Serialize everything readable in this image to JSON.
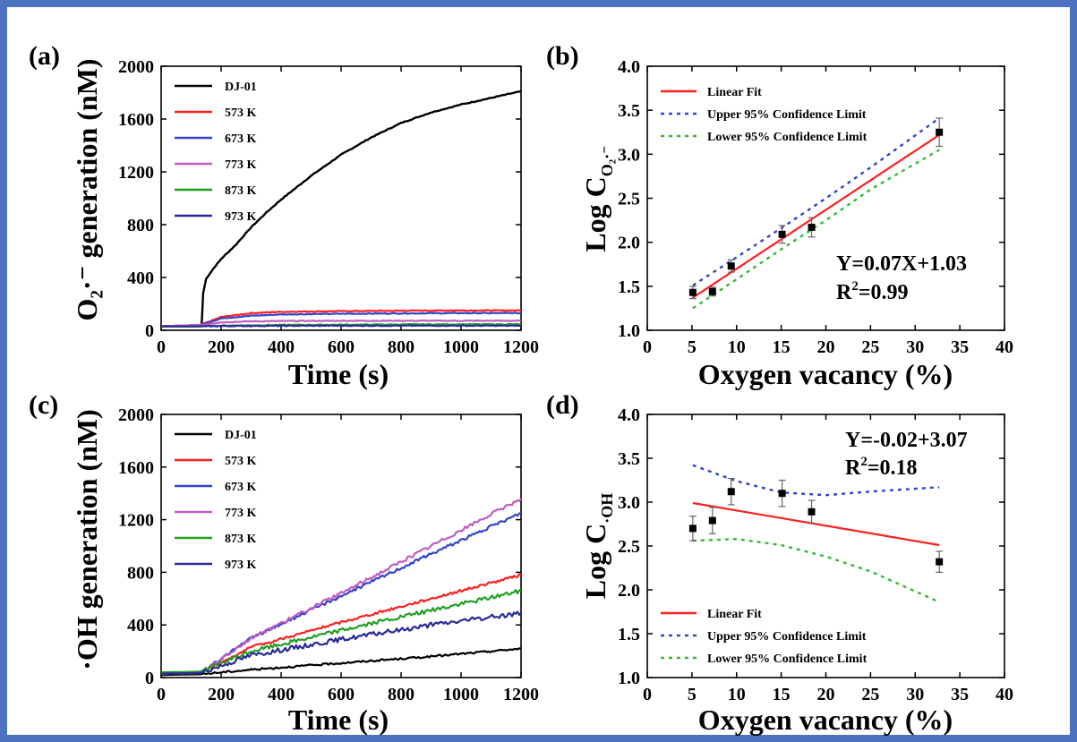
{
  "colors": {
    "frame": "#4a72c0",
    "DJ-01": "#000000",
    "573 K": "#ff2020",
    "673 K": "#3344cc",
    "773 K": "#c25cc2",
    "873 K": "#20a020",
    "973 K": "#2a2a9a",
    "linear_fit": "#ff2020",
    "upper_ci": "#3344cc",
    "lower_ci": "#33bb33"
  },
  "chart_data": [
    {
      "id": "a",
      "type": "line",
      "panel_label": "(a)",
      "xlabel": "Time (s)",
      "ylabel": "O₂·⁻ generation (nM)",
      "xlim": [
        0,
        1200
      ],
      "ylim": [
        0,
        2000
      ],
      "xticks": [
        0,
        200,
        400,
        600,
        800,
        1000,
        1200
      ],
      "yticks": [
        0,
        400,
        800,
        1200,
        1600,
        2000
      ],
      "legend_position": "top-left",
      "series": [
        {
          "name": "DJ-01",
          "x": [
            0,
            120,
            135,
            140,
            150,
            175,
            200,
            250,
            300,
            350,
            400,
            500,
            600,
            700,
            800,
            900,
            1000,
            1100,
            1200
          ],
          "y": [
            30,
            30,
            40,
            280,
            390,
            470,
            540,
            650,
            780,
            890,
            990,
            1170,
            1330,
            1460,
            1570,
            1650,
            1710,
            1760,
            1810
          ]
        },
        {
          "name": "573 K",
          "x": [
            0,
            130,
            200,
            300,
            400,
            600,
            800,
            1000,
            1200
          ],
          "y": [
            30,
            40,
            100,
            130,
            140,
            145,
            148,
            150,
            150
          ]
        },
        {
          "name": "673 K",
          "x": [
            0,
            130,
            200,
            300,
            400,
            600,
            800,
            1000,
            1200
          ],
          "y": [
            30,
            40,
            90,
            110,
            120,
            125,
            128,
            130,
            130
          ]
        },
        {
          "name": "773 K",
          "x": [
            0,
            130,
            200,
            300,
            400,
            600,
            800,
            1000,
            1200
          ],
          "y": [
            30,
            40,
            60,
            68,
            70,
            72,
            72,
            72,
            72
          ]
        },
        {
          "name": "873 K",
          "x": [
            0,
            130,
            200,
            400,
            600,
            800,
            1000,
            1200
          ],
          "y": [
            30,
            30,
            35,
            40,
            42,
            44,
            45,
            45
          ]
        },
        {
          "name": "973 K",
          "x": [
            0,
            130,
            200,
            400,
            600,
            800,
            1000,
            1200
          ],
          "y": [
            30,
            30,
            32,
            34,
            35,
            35,
            35,
            35
          ]
        }
      ]
    },
    {
      "id": "b",
      "type": "scatter",
      "panel_label": "(b)",
      "xlabel": "Oxygen vacancy (%)",
      "ylabel": "Log C",
      "ylabel_subscript": "O₂·⁻",
      "xlim": [
        0,
        40
      ],
      "ylim": [
        1.0,
        4.0
      ],
      "xticks": [
        0,
        5,
        10,
        15,
        20,
        25,
        30,
        35,
        40
      ],
      "yticks": [
        1.0,
        1.5,
        2.0,
        2.5,
        3.0,
        3.5,
        4.0
      ],
      "legend_position": "top-left",
      "points": {
        "x": [
          5.1,
          7.3,
          9.4,
          15.1,
          18.4,
          32.7
        ],
        "y": [
          1.43,
          1.44,
          1.73,
          2.09,
          2.17,
          3.25
        ],
        "err": [
          0.07,
          0.05,
          0.07,
          0.1,
          0.11,
          0.16
        ]
      },
      "fit": {
        "name": "Linear Fit",
        "x": [
          5.1,
          32.7
        ],
        "y": [
          1.37,
          3.22
        ]
      },
      "upper": {
        "name": "Upper 95% Confidence Limit",
        "x": [
          5.1,
          10,
          15,
          20,
          25,
          32.7
        ],
        "y": [
          1.51,
          1.83,
          2.16,
          2.5,
          2.85,
          3.41
        ]
      },
      "lower": {
        "name": "Lower 95% Confidence Limit",
        "x": [
          5.1,
          10,
          15,
          20,
          25,
          32.7
        ],
        "y": [
          1.25,
          1.58,
          1.92,
          2.25,
          2.6,
          3.05
        ]
      },
      "equation": "Y=0.07X+1.03",
      "r2_label": "R",
      "r2_sup": "2",
      "r2_value": "=0.99"
    },
    {
      "id": "c",
      "type": "line",
      "panel_label": "(c)",
      "xlabel": "Time (s)",
      "ylabel": "·OH generation (nM)",
      "xlim": [
        0,
        1200
      ],
      "ylim": [
        0,
        2000
      ],
      "xticks": [
        0,
        200,
        400,
        600,
        800,
        1000,
        1200
      ],
      "yticks": [
        0,
        400,
        800,
        1200,
        1600,
        2000
      ],
      "legend_position": "top-left",
      "series": [
        {
          "name": "DJ-01",
          "x": [
            0,
            130,
            300,
            600,
            900,
            1200
          ],
          "y": [
            20,
            25,
            60,
            110,
            160,
            220
          ]
        },
        {
          "name": "573 K",
          "x": [
            0,
            130,
            300,
            600,
            900,
            1200
          ],
          "y": [
            30,
            35,
            230,
            420,
            600,
            780
          ]
        },
        {
          "name": "673 K",
          "x": [
            0,
            130,
            300,
            600,
            900,
            1200
          ],
          "y": [
            30,
            35,
            300,
            620,
            940,
            1250
          ]
        },
        {
          "name": "773 K",
          "x": [
            0,
            130,
            300,
            600,
            900,
            1200
          ],
          "y": [
            30,
            35,
            300,
            640,
            1000,
            1360
          ]
        },
        {
          "name": "873 K",
          "x": [
            0,
            130,
            300,
            600,
            900,
            1200
          ],
          "y": [
            40,
            45,
            200,
            360,
            510,
            660
          ]
        },
        {
          "name": "973 K",
          "x": [
            0,
            130,
            300,
            600,
            900,
            1200
          ],
          "y": [
            30,
            35,
            170,
            290,
            400,
            490
          ]
        }
      ]
    },
    {
      "id": "d",
      "type": "scatter",
      "panel_label": "(d)",
      "xlabel": "Oxygen vacancy (%)",
      "ylabel": "Log C",
      "ylabel_subscript": "·OH",
      "xlim": [
        0,
        40
      ],
      "ylim": [
        1.0,
        4.0
      ],
      "xticks": [
        0,
        5,
        10,
        15,
        20,
        25,
        30,
        35,
        40
      ],
      "yticks": [
        1.0,
        1.5,
        2.0,
        2.5,
        3.0,
        3.5,
        4.0
      ],
      "legend_position": "bottom-left",
      "points": {
        "x": [
          5.1,
          7.3,
          9.4,
          15.1,
          18.4,
          32.7
        ],
        "y": [
          2.7,
          2.79,
          3.12,
          3.1,
          2.89,
          2.32
        ],
        "err": [
          0.14,
          0.15,
          0.15,
          0.15,
          0.13,
          0.12
        ]
      },
      "fit": {
        "name": "Linear Fit",
        "x": [
          5.1,
          32.7
        ],
        "y": [
          2.99,
          2.51
        ]
      },
      "upper": {
        "name": "Upper 95% Confidence Limit",
        "x": [
          5.1,
          10,
          15,
          20,
          25,
          32.7
        ],
        "y": [
          3.42,
          3.24,
          3.11,
          3.08,
          3.12,
          3.17
        ]
      },
      "lower": {
        "name": "Lower 95% Confidence Limit",
        "x": [
          5.1,
          10,
          15,
          20,
          25,
          32.7
        ],
        "y": [
          2.56,
          2.58,
          2.51,
          2.38,
          2.21,
          1.86
        ]
      },
      "equation": "Y=-0.02+3.07",
      "r2_label": "R",
      "r2_sup": "2",
      "r2_value": "=0.18"
    }
  ]
}
